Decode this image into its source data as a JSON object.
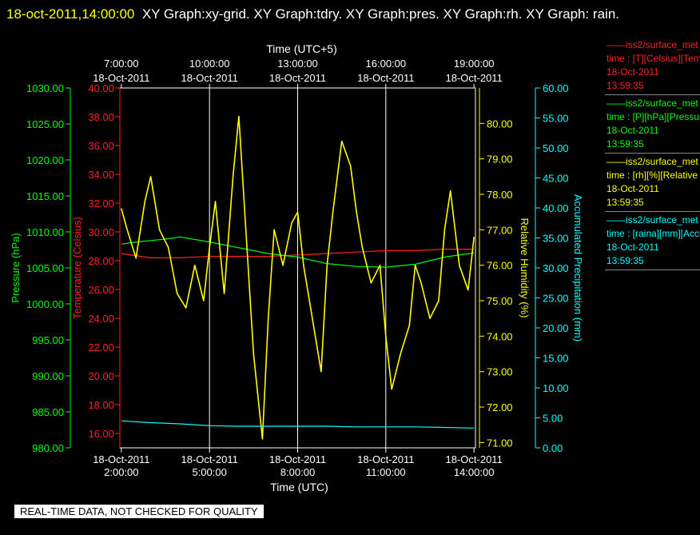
{
  "header": {
    "timestamp": "18-oct-2011,14:00:00",
    "title": "XY Graph:xy-grid.  XY Graph:tdry.  XY Graph:pres.  XY Graph:rh.  XY Graph: rain."
  },
  "notice": "REAL-TIME DATA, NOT CHECKED FOR QUALITY",
  "legend": [
    {
      "name": "——iss2/surface_met",
      "units": "time : [T][Celsius][Temperature]",
      "date": "18-Oct-2011",
      "time": "13:59:35",
      "color": "#ff2020"
    },
    {
      "name": "——iss2/surface_met",
      "units": "time : [P][hPa][Pressure]",
      "date": "18-Oct-2011",
      "time": "13:59:35",
      "color": "#00ff00"
    },
    {
      "name": "——iss2/surface_met",
      "units": "time : [rh][%][Relative Humidity]",
      "date": "18-Oct-2011",
      "time": "13:59:35",
      "color": "#ffff00"
    },
    {
      "name": "——iss2/surface_met",
      "units": "time : [raina][mm][Accumulated Precipitation]",
      "date": "18-Oct-2011",
      "time": "13:59:35",
      "color": "#00ffff"
    }
  ],
  "chart_data": {
    "type": "line",
    "x_bottom": {
      "label": "Time (UTC)",
      "range_hours": [
        1.95,
        14.05
      ],
      "ticks": [
        {
          "h": 2,
          "date": "18-Oct-2011",
          "time": "2:00:00"
        },
        {
          "h": 5,
          "date": "18-Oct-2011",
          "time": "5:00:00"
        },
        {
          "h": 8,
          "date": "18-Oct-2011",
          "time": "8:00:00"
        },
        {
          "h": 11,
          "date": "18-Oct-2011",
          "time": "11:00:00"
        },
        {
          "h": 14,
          "date": "18-Oct-2011",
          "time": "14:00:00"
        }
      ]
    },
    "x_top": {
      "label": "Time (UTC+5)",
      "ticks": [
        {
          "h": 2,
          "date": "18-Oct-2011",
          "time": "7:00:00"
        },
        {
          "h": 5,
          "date": "18-Oct-2011",
          "time": "10:00:00"
        },
        {
          "h": 8,
          "date": "18-Oct-2011",
          "time": "13:00:00"
        },
        {
          "h": 11,
          "date": "18-Oct-2011",
          "time": "16:00:00"
        },
        {
          "h": 14,
          "date": "18-Oct-2011",
          "time": "19:00:00"
        }
      ]
    },
    "grid_hours": [
      5,
      8,
      11
    ],
    "axes": {
      "pressure": {
        "label": "Pressure (hPa)",
        "color": "#00ff00",
        "min": 980,
        "max": 1030,
        "ticks": [
          "980.00",
          "985.00",
          "990.00",
          "995.00",
          "1000.00",
          "1005.00",
          "1010.00",
          "1015.00",
          "1020.00",
          "1025.00",
          "1030.00"
        ]
      },
      "temperature": {
        "label": "Temperature (Celsius)",
        "color": "#ff2020",
        "min": 15.0,
        "max": 40,
        "ticks": [
          "16.00",
          "18.00",
          "20.00",
          "22.00",
          "24.00",
          "26.00",
          "28.00",
          "30.00",
          "32.00",
          "34.00",
          "36.00",
          "38.00",
          "40.00"
        ]
      },
      "humidity": {
        "label": "Relative Humidity (%)",
        "color": "#ffff00",
        "min": 70.85,
        "max": 81.0,
        "ticks": [
          "71.00",
          "72.00",
          "73.00",
          "74.00",
          "75.00",
          "76.00",
          "77.00",
          "78.00",
          "79.00",
          "80.00"
        ]
      },
      "precip": {
        "label": "Accumulated Precipitation (mm)",
        "color": "#00ffff",
        "min": 0,
        "max": 60,
        "ticks": [
          "0.00",
          "5.00",
          "10.00",
          "15.00",
          "20.00",
          "25.00",
          "30.00",
          "35.00",
          "40.00",
          "45.00",
          "50.00",
          "55.00",
          "60.00"
        ]
      }
    },
    "series": [
      {
        "axis": "temperature",
        "color": "#ff2020",
        "x": [
          2,
          3,
          4,
          5,
          6,
          7,
          8,
          9,
          10,
          11,
          12,
          13,
          14
        ],
        "y": [
          28.5,
          28.2,
          28.2,
          28.3,
          28.3,
          28.3,
          28.4,
          28.5,
          28.6,
          28.7,
          28.7,
          28.8,
          28.8
        ]
      },
      {
        "axis": "pressure",
        "color": "#00ff00",
        "x": [
          2,
          2.5,
          3,
          3.5,
          4,
          5,
          6,
          7,
          8,
          9,
          10,
          11,
          12,
          13,
          14
        ],
        "y": [
          1008.3,
          1008.6,
          1008.8,
          1009.0,
          1009.3,
          1008.6,
          1007.8,
          1007.0,
          1006.5,
          1005.6,
          1005.2,
          1005.1,
          1005.5,
          1006.5,
          1007.1
        ]
      },
      {
        "axis": "humidity",
        "color": "#ffff00",
        "x": [
          2,
          2.2,
          2.5,
          2.8,
          3,
          3.3,
          3.6,
          3.9,
          4.2,
          4.5,
          4.8,
          5,
          5.2,
          5.5,
          5.8,
          6,
          6.2,
          6.5,
          6.8,
          7,
          7.2,
          7.5,
          7.8,
          8,
          8.2,
          8.5,
          8.8,
          9,
          9.2,
          9.5,
          9.8,
          10,
          10.2,
          10.5,
          10.8,
          11,
          11.2,
          11.5,
          11.8,
          12,
          12.2,
          12.5,
          12.8,
          13,
          13.2,
          13.5,
          13.8,
          14
        ],
        "y": [
          77.6,
          77.0,
          76.2,
          77.8,
          78.5,
          77.0,
          76.5,
          75.2,
          74.8,
          76.0,
          75.0,
          76.5,
          77.8,
          75.2,
          78.5,
          80.2,
          77.5,
          73.5,
          71.1,
          74.5,
          77.0,
          76.0,
          77.2,
          77.5,
          76.0,
          74.5,
          73.0,
          76.0,
          77.5,
          79.5,
          78.8,
          77.5,
          76.5,
          75.5,
          76.0,
          74.0,
          72.5,
          73.5,
          74.3,
          76.0,
          75.5,
          74.5,
          75.0,
          77.0,
          78.1,
          76.0,
          75.3,
          76.8
        ]
      },
      {
        "axis": "precip",
        "color": "#00ffff",
        "x": [
          2,
          3,
          4,
          5,
          6,
          7,
          8,
          9,
          10,
          11,
          12,
          13,
          14
        ],
        "y": [
          4.5,
          4.2,
          4.0,
          3.7,
          3.6,
          3.6,
          3.6,
          3.6,
          3.5,
          3.5,
          3.5,
          3.4,
          3.3
        ]
      }
    ]
  }
}
